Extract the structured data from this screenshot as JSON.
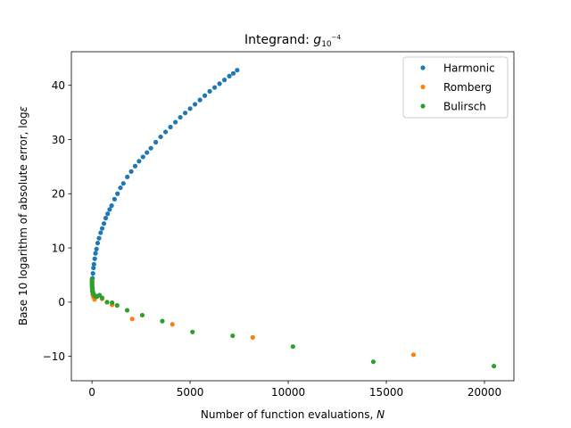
{
  "chart_data": {
    "type": "scatter",
    "title": "Integrand: g_{10^{-4}}",
    "title_main": "Integrand: ",
    "title_symbol": "g",
    "title_sub": "10",
    "title_sup": "−4",
    "xlabel_text": "Number of function evaluations, ",
    "xlabel_var": "N",
    "ylabel_text": "Base 10 logarithm of absolute error, log",
    "ylabel_var": "ε",
    "xlim": [
      -1050,
      21500
    ],
    "ylim": [
      -14.5,
      46.2
    ],
    "xticks": [
      0,
      5000,
      10000,
      15000,
      20000
    ],
    "xtick_labels": [
      "0",
      "5000",
      "10000",
      "15000",
      "20000"
    ],
    "yticks": [
      -10,
      0,
      10,
      20,
      30,
      40
    ],
    "ytick_labels": [
      "−10",
      "0",
      "10",
      "20",
      "30",
      "40"
    ],
    "grid": false,
    "legend_position": "top-right",
    "series": [
      {
        "name": "Harmonic",
        "color": "#1f77b4",
        "x": [
          25,
          50,
          75,
          100,
          140,
          180,
          230,
          290,
          360,
          440,
          520,
          610,
          700,
          800,
          900,
          1000,
          1150,
          1300,
          1450,
          1600,
          1800,
          2000,
          2200,
          2400,
          2600,
          2800,
          3000,
          3250,
          3500,
          3750,
          4000,
          4250,
          4500,
          4750,
          5000,
          5250,
          5500,
          5750,
          6000,
          6250,
          6500,
          6750,
          7000,
          7200,
          7400
        ],
        "y": [
          4.4,
          5.3,
          6.3,
          7.0,
          8.0,
          9.0,
          9.8,
          10.9,
          11.8,
          12.8,
          13.6,
          14.5,
          15.5,
          16.3,
          17.1,
          17.8,
          19.0,
          20.0,
          21.1,
          21.9,
          23.1,
          24.1,
          25.1,
          26.0,
          26.8,
          27.6,
          28.4,
          29.5,
          30.5,
          31.4,
          32.3,
          33.2,
          34.1,
          34.9,
          35.7,
          36.5,
          37.3,
          38.1,
          38.9,
          39.6,
          40.3,
          41.0,
          41.7,
          42.2,
          42.8
        ]
      },
      {
        "name": "Romberg",
        "color": "#ff7f0e",
        "x": [
          3,
          5,
          9,
          17,
          33,
          65,
          129,
          257,
          513,
          1025,
          2049,
          4097,
          8193,
          16385
        ],
        "y": [
          3.8,
          3.2,
          2.7,
          2.0,
          1.4,
          1.0,
          0.5,
          1.0,
          0.6,
          -0.5,
          -3.1,
          -4.1,
          -6.5,
          -9.7
        ]
      },
      {
        "name": "Bulirsch",
        "color": "#2ca02c",
        "x": [
          2,
          3,
          5,
          7,
          9,
          13,
          17,
          25,
          33,
          49,
          65,
          97,
          129,
          193,
          257,
          385,
          513,
          769,
          1025,
          1281,
          1793,
          2561,
          3585,
          5121,
          7169,
          10241,
          14337,
          20481
        ],
        "y": [
          4.2,
          3.8,
          3.5,
          3.2,
          2.9,
          2.6,
          2.4,
          2.2,
          2.0,
          1.8,
          1.6,
          1.4,
          1.2,
          1.0,
          1.1,
          1.3,
          0.8,
          0.0,
          -0.1,
          -0.6,
          -1.5,
          -2.4,
          -3.5,
          -5.5,
          -6.2,
          -8.2,
          -11.0,
          -11.8
        ]
      }
    ]
  }
}
